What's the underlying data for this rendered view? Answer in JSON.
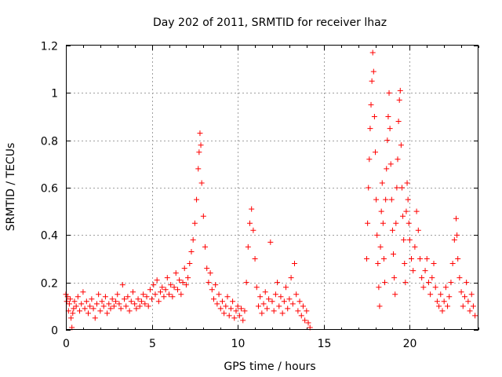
{
  "chart_data": {
    "type": "scatter",
    "title": "Day 202 of 2011, SRMTID for receiver lhaz",
    "xlabel": "GPS time / hours",
    "ylabel": "SRMTID / TECUs",
    "xlim": [
      0,
      24
    ],
    "ylim": [
      0,
      1.2
    ],
    "x_ticks": [
      0,
      5,
      10,
      15,
      20
    ],
    "x_tick_labels": [
      "0",
      "5",
      "10",
      "15",
      "20"
    ],
    "y_ticks": [
      0,
      0.2,
      0.4,
      0.6,
      0.8,
      1.0,
      1.2
    ],
    "y_tick_labels": [
      "0",
      "0.2",
      "0.4",
      "0.6",
      "0.8",
      "1",
      "1.2"
    ],
    "grid": true,
    "marker": "plus",
    "color": "#ff0000",
    "series": [
      {
        "name": "SRMTID",
        "points": [
          [
            0.0,
            0.15
          ],
          [
            0.05,
            0.12
          ],
          [
            0.1,
            0.14
          ],
          [
            0.15,
            0.08
          ],
          [
            0.2,
            0.11
          ],
          [
            0.25,
            0.13
          ],
          [
            0.3,
            0.05
          ],
          [
            0.35,
            0.01
          ],
          [
            0.4,
            0.07
          ],
          [
            0.45,
            0.09
          ],
          [
            0.5,
            0.12
          ],
          [
            0.6,
            0.1
          ],
          [
            0.7,
            0.14
          ],
          [
            0.8,
            0.08
          ],
          [
            0.9,
            0.11
          ],
          [
            1.0,
            0.16
          ],
          [
            1.1,
            0.09
          ],
          [
            1.2,
            0.12
          ],
          [
            1.3,
            0.07
          ],
          [
            1.4,
            0.1
          ],
          [
            1.5,
            0.13
          ],
          [
            1.6,
            0.09
          ],
          [
            1.7,
            0.05
          ],
          [
            1.8,
            0.11
          ],
          [
            1.9,
            0.15
          ],
          [
            2.0,
            0.08
          ],
          [
            2.1,
            0.12
          ],
          [
            2.2,
            0.1
          ],
          [
            2.3,
            0.14
          ],
          [
            2.4,
            0.07
          ],
          [
            2.5,
            0.11
          ],
          [
            2.6,
            0.09
          ],
          [
            2.7,
            0.13
          ],
          [
            2.8,
            0.1
          ],
          [
            2.9,
            0.12
          ],
          [
            3.0,
            0.15
          ],
          [
            3.1,
            0.11
          ],
          [
            3.2,
            0.09
          ],
          [
            3.3,
            0.19
          ],
          [
            3.4,
            0.13
          ],
          [
            3.5,
            0.1
          ],
          [
            3.6,
            0.14
          ],
          [
            3.7,
            0.08
          ],
          [
            3.8,
            0.12
          ],
          [
            3.9,
            0.16
          ],
          [
            4.0,
            0.11
          ],
          [
            4.1,
            0.09
          ],
          [
            4.2,
            0.13
          ],
          [
            4.3,
            0.1
          ],
          [
            4.4,
            0.12
          ],
          [
            4.5,
            0.15
          ],
          [
            4.6,
            0.11
          ],
          [
            4.7,
            0.14
          ],
          [
            4.8,
            0.1
          ],
          [
            4.9,
            0.17
          ],
          [
            5.0,
            0.13
          ],
          [
            5.1,
            0.19
          ],
          [
            5.2,
            0.15
          ],
          [
            5.3,
            0.21
          ],
          [
            5.4,
            0.12
          ],
          [
            5.5,
            0.16
          ],
          [
            5.6,
            0.18
          ],
          [
            5.7,
            0.14
          ],
          [
            5.8,
            0.17
          ],
          [
            5.9,
            0.22
          ],
          [
            6.0,
            0.15
          ],
          [
            6.1,
            0.19
          ],
          [
            6.2,
            0.14
          ],
          [
            6.3,
            0.18
          ],
          [
            6.4,
            0.24
          ],
          [
            6.5,
            0.17
          ],
          [
            6.6,
            0.21
          ],
          [
            6.7,
            0.15
          ],
          [
            6.8,
            0.2
          ],
          [
            6.9,
            0.26
          ],
          [
            7.0,
            0.19
          ],
          [
            7.1,
            0.22
          ],
          [
            7.2,
            0.28
          ],
          [
            7.3,
            0.33
          ],
          [
            7.4,
            0.38
          ],
          [
            7.5,
            0.45
          ],
          [
            7.6,
            0.55
          ],
          [
            7.7,
            0.68
          ],
          [
            7.75,
            0.75
          ],
          [
            7.8,
            0.83
          ],
          [
            7.85,
            0.78
          ],
          [
            7.9,
            0.62
          ],
          [
            8.0,
            0.48
          ],
          [
            8.1,
            0.35
          ],
          [
            8.2,
            0.26
          ],
          [
            8.3,
            0.2
          ],
          [
            8.4,
            0.24
          ],
          [
            8.5,
            0.17
          ],
          [
            8.6,
            0.13
          ],
          [
            8.7,
            0.19
          ],
          [
            8.8,
            0.11
          ],
          [
            8.9,
            0.15
          ],
          [
            9.0,
            0.09
          ],
          [
            9.1,
            0.12
          ],
          [
            9.2,
            0.07
          ],
          [
            9.3,
            0.1
          ],
          [
            9.4,
            0.14
          ],
          [
            9.5,
            0.06
          ],
          [
            9.6,
            0.09
          ],
          [
            9.7,
            0.12
          ],
          [
            9.8,
            0.05
          ],
          [
            9.9,
            0.08
          ],
          [
            10.0,
            0.1
          ],
          [
            10.1,
            0.06
          ],
          [
            10.2,
            0.09
          ],
          [
            10.3,
            0.04
          ],
          [
            10.4,
            0.08
          ],
          [
            10.5,
            0.2
          ],
          [
            10.6,
            0.35
          ],
          [
            10.7,
            0.45
          ],
          [
            10.8,
            0.51
          ],
          [
            10.9,
            0.42
          ],
          [
            11.0,
            0.3
          ],
          [
            11.1,
            0.18
          ],
          [
            11.2,
            0.1
          ],
          [
            11.3,
            0.14
          ],
          [
            11.4,
            0.07
          ],
          [
            11.5,
            0.11
          ],
          [
            11.6,
            0.16
          ],
          [
            11.7,
            0.09
          ],
          [
            11.8,
            0.13
          ],
          [
            11.9,
            0.37
          ],
          [
            12.0,
            0.12
          ],
          [
            12.1,
            0.08
          ],
          [
            12.2,
            0.15
          ],
          [
            12.3,
            0.2
          ],
          [
            12.4,
            0.1
          ],
          [
            12.5,
            0.14
          ],
          [
            12.6,
            0.07
          ],
          [
            12.7,
            0.12
          ],
          [
            12.8,
            0.18
          ],
          [
            12.9,
            0.09
          ],
          [
            13.0,
            0.13
          ],
          [
            13.1,
            0.22
          ],
          [
            13.2,
            0.11
          ],
          [
            13.3,
            0.28
          ],
          [
            13.4,
            0.15
          ],
          [
            13.5,
            0.08
          ],
          [
            13.6,
            0.12
          ],
          [
            13.7,
            0.06
          ],
          [
            13.8,
            0.1
          ],
          [
            13.9,
            0.04
          ],
          [
            14.0,
            0.08
          ],
          [
            14.1,
            0.03
          ],
          [
            14.2,
            0.01
          ],
          [
            17.5,
            0.3
          ],
          [
            17.55,
            0.45
          ],
          [
            17.6,
            0.6
          ],
          [
            17.65,
            0.72
          ],
          [
            17.7,
            0.85
          ],
          [
            17.75,
            0.95
          ],
          [
            17.8,
            1.05
          ],
          [
            17.85,
            1.17
          ],
          [
            17.9,
            1.09
          ],
          [
            17.95,
            0.9
          ],
          [
            18.0,
            0.75
          ],
          [
            18.05,
            0.55
          ],
          [
            18.1,
            0.4
          ],
          [
            18.15,
            0.28
          ],
          [
            18.2,
            0.18
          ],
          [
            18.25,
            0.1
          ],
          [
            18.3,
            0.35
          ],
          [
            18.35,
            0.5
          ],
          [
            18.4,
            0.62
          ],
          [
            18.45,
            0.45
          ],
          [
            18.5,
            0.3
          ],
          [
            18.55,
            0.2
          ],
          [
            18.6,
            0.55
          ],
          [
            18.65,
            0.68
          ],
          [
            18.7,
            0.8
          ],
          [
            18.75,
            0.9
          ],
          [
            18.8,
            1.0
          ],
          [
            18.85,
            0.85
          ],
          [
            18.9,
            0.7
          ],
          [
            18.95,
            0.55
          ],
          [
            19.0,
            0.42
          ],
          [
            19.05,
            0.32
          ],
          [
            19.1,
            0.22
          ],
          [
            19.15,
            0.15
          ],
          [
            19.2,
            0.45
          ],
          [
            19.25,
            0.6
          ],
          [
            19.3,
            0.72
          ],
          [
            19.35,
            0.88
          ],
          [
            19.4,
            0.97
          ],
          [
            19.45,
            1.01
          ],
          [
            19.5,
            0.78
          ],
          [
            19.55,
            0.6
          ],
          [
            19.6,
            0.48
          ],
          [
            19.65,
            0.38
          ],
          [
            19.7,
            0.28
          ],
          [
            19.75,
            0.2
          ],
          [
            19.8,
            0.5
          ],
          [
            19.85,
            0.62
          ],
          [
            19.9,
            0.55
          ],
          [
            19.95,
            0.45
          ],
          [
            20.0,
            0.38
          ],
          [
            20.1,
            0.3
          ],
          [
            20.2,
            0.25
          ],
          [
            20.3,
            0.35
          ],
          [
            20.4,
            0.5
          ],
          [
            20.5,
            0.42
          ],
          [
            20.6,
            0.3
          ],
          [
            20.7,
            0.22
          ],
          [
            20.8,
            0.18
          ],
          [
            20.9,
            0.25
          ],
          [
            21.0,
            0.3
          ],
          [
            21.1,
            0.2
          ],
          [
            21.2,
            0.15
          ],
          [
            21.3,
            0.22
          ],
          [
            21.4,
            0.28
          ],
          [
            21.5,
            0.18
          ],
          [
            21.6,
            0.12
          ],
          [
            21.7,
            0.1
          ],
          [
            21.8,
            0.15
          ],
          [
            21.9,
            0.08
          ],
          [
            22.0,
            0.12
          ],
          [
            22.1,
            0.18
          ],
          [
            22.2,
            0.1
          ],
          [
            22.3,
            0.14
          ],
          [
            22.4,
            0.2
          ],
          [
            22.5,
            0.28
          ],
          [
            22.6,
            0.38
          ],
          [
            22.7,
            0.47
          ],
          [
            22.75,
            0.4
          ],
          [
            22.8,
            0.3
          ],
          [
            22.9,
            0.22
          ],
          [
            23.0,
            0.16
          ],
          [
            23.1,
            0.1
          ],
          [
            23.2,
            0.14
          ],
          [
            23.3,
            0.2
          ],
          [
            23.4,
            0.12
          ],
          [
            23.5,
            0.08
          ],
          [
            23.6,
            0.15
          ],
          [
            23.7,
            0.1
          ],
          [
            23.8,
            0.06
          ]
        ]
      }
    ]
  }
}
